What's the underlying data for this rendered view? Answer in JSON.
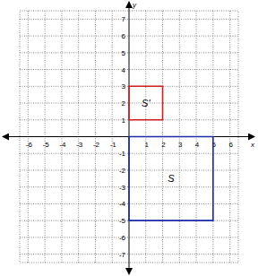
{
  "chart_data": {
    "type": "polygon",
    "x_label": "x",
    "y_label": "y",
    "xlim": [
      -6.5,
      6.5
    ],
    "ylim": [
      -7.5,
      7.5
    ],
    "xticks": [
      -6,
      -5,
      -4,
      -3,
      -2,
      -1,
      1,
      2,
      3,
      4,
      5,
      6
    ],
    "yticks": [
      -7,
      -6,
      -5,
      -4,
      -3,
      -2,
      -1,
      1,
      2,
      3,
      4,
      5,
      6,
      7
    ],
    "grid": true,
    "series": [
      {
        "name": "S",
        "color": "#1e2aa8",
        "x": [
          0,
          5,
          5,
          0
        ],
        "values": [
          0,
          0,
          -5,
          -5
        ]
      },
      {
        "name": "S'",
        "color": "#d02020",
        "x": [
          0,
          2,
          2,
          0
        ],
        "values": [
          1,
          1,
          3,
          3
        ]
      }
    ]
  }
}
